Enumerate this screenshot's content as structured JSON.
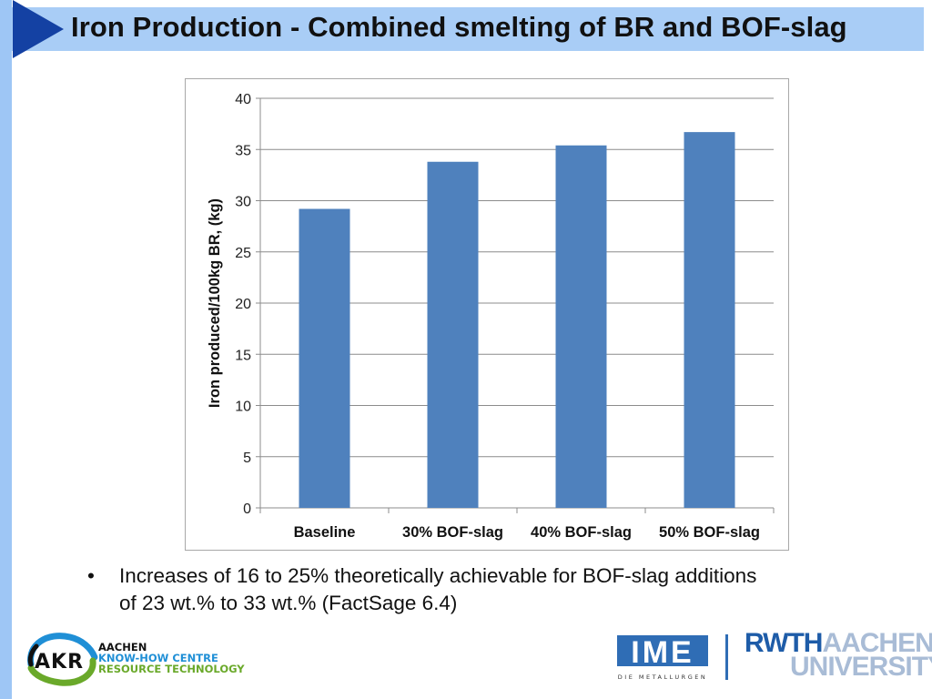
{
  "slide": {
    "title": "Iron Production - Combined smelting of BR and BOF-slag",
    "bullet": "Increases of 16 to 25% theoretically achievable for BOF-slag additions of 23 wt.% to 33 wt.% (FactSage 6.4)"
  },
  "logos": {
    "akr": {
      "mark": "AKR",
      "line1": "AACHEN",
      "line2": "KNOW-HOW CENTRE",
      "line3": "RESOURCE TECHNOLOGY"
    },
    "ime": {
      "mark": "IME",
      "tagline": "DIE METALLURGEN"
    },
    "rwth": {
      "part1": "RWTH",
      "part2": "AACHEN",
      "part3": "UNIVERSITY"
    }
  },
  "colors": {
    "bar": "#4f81bd",
    "title_bar": "#a9cdf6",
    "title_arrow": "#1441a3",
    "grid": "#8c8c8c"
  },
  "chart_data": {
    "type": "bar",
    "categories": [
      "Baseline",
      "30%  BOF-slag",
      "40%  BOF-slag",
      "50%  BOF-slag"
    ],
    "values": [
      29.2,
      33.8,
      35.4,
      36.7
    ],
    "title": "",
    "xlabel": "",
    "ylabel": "Iron produced/100kg BR,  (kg)",
    "ylim": [
      0,
      40
    ],
    "yticks": [
      0,
      5,
      10,
      15,
      20,
      25,
      30,
      35,
      40
    ],
    "grid": true,
    "legend": "none"
  }
}
